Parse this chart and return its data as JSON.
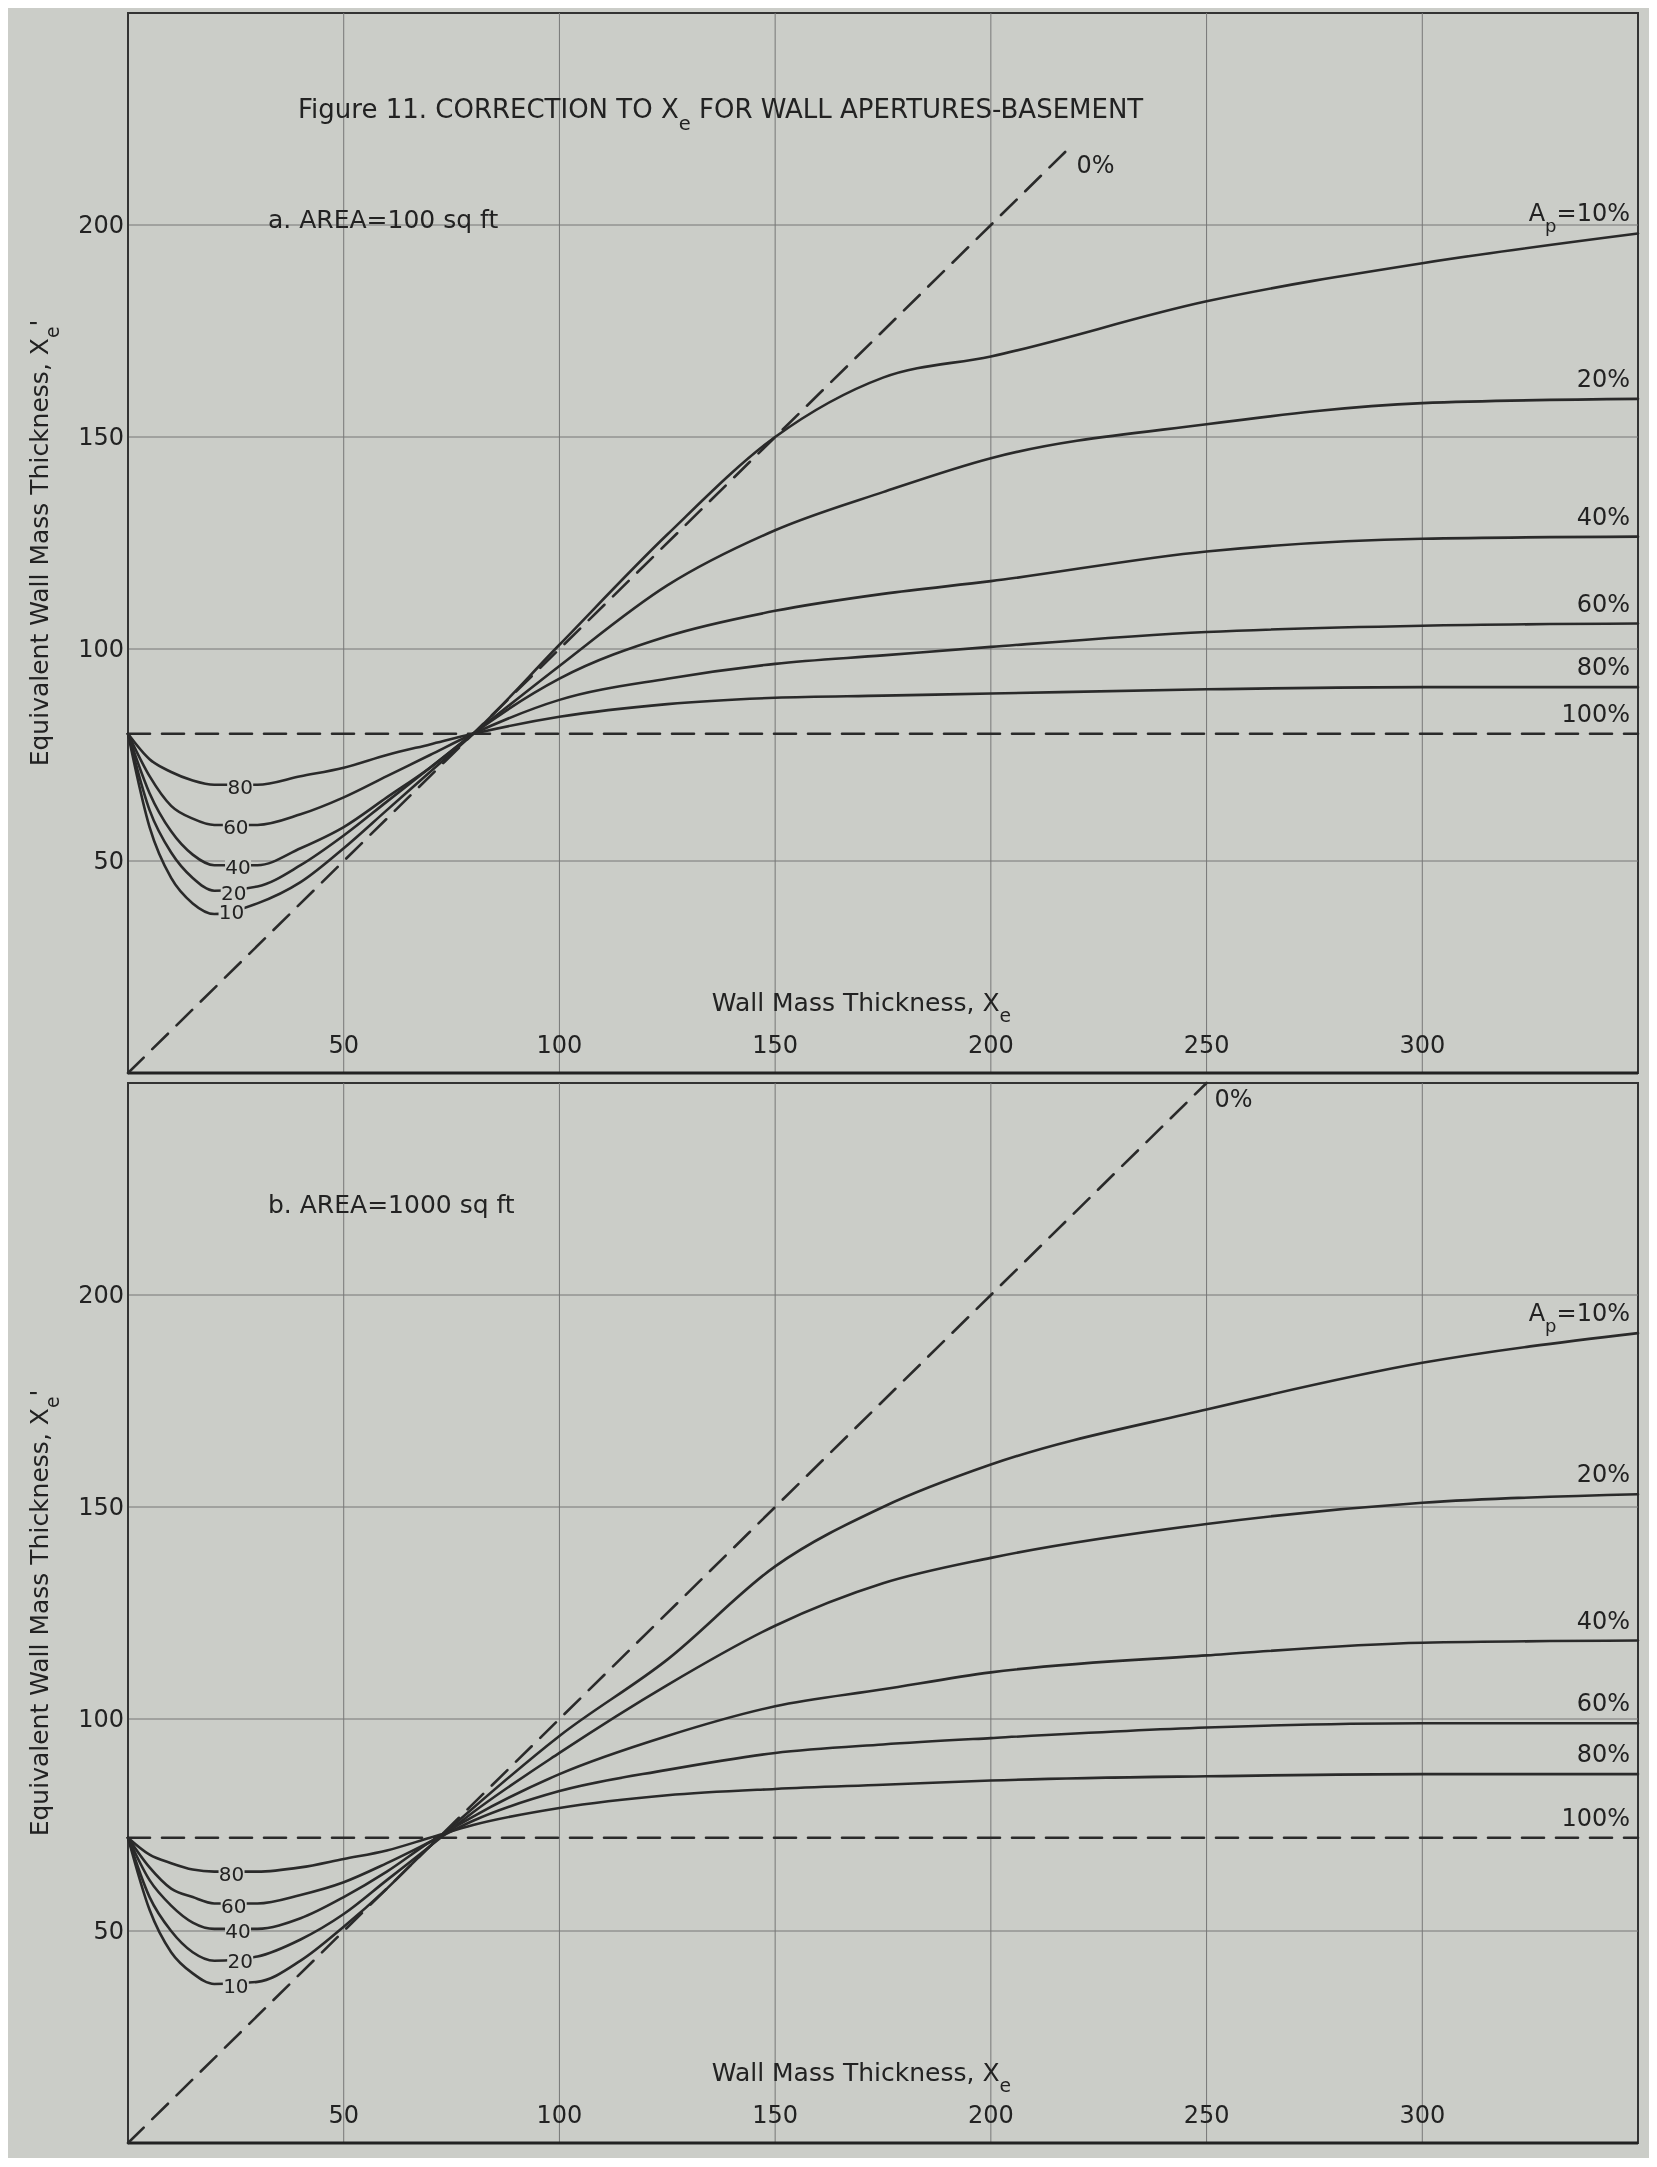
{
  "chart_data": [
    {
      "type": "line",
      "title": "Figure 11.  CORRECTION TO X$_{e}$ FOR WALL APERTURES-BASEMENT",
      "subtitle": "a. AREA=100 sq ft",
      "xlabel": "Wall Mass Thickness, X$_{e}$",
      "ylabel": "Equivalent Wall Mass Thickness, X$_{e}$'",
      "xlim": [
        0,
        350
      ],
      "ylim": [
        0,
        250
      ],
      "xticks": [
        50,
        100,
        150,
        200,
        250,
        300
      ],
      "yticks": [
        50,
        100,
        150,
        200
      ],
      "grid": true,
      "legend": false,
      "x": [
        0,
        5,
        10,
        15,
        20,
        30,
        40,
        50,
        60,
        70,
        80,
        100,
        125,
        150,
        175,
        200,
        250,
        300,
        350
      ],
      "series": [
        {
          "name": "A$_{p}$=10%",
          "color": "#2a2a2a",
          "values": [
            80,
            58,
            46,
            40,
            37.5,
            40,
            45,
            53,
            62,
            71,
            80,
            101,
            127,
            150,
            164,
            169,
            182,
            191,
            198
          ]
        },
        {
          "name": "20%",
          "color": "#2a2a2a",
          "values": [
            80,
            62,
            52,
            46,
            43,
            44,
            49,
            56,
            64,
            72,
            80,
            96,
            115,
            128,
            137,
            145,
            153,
            158,
            159
          ]
        },
        {
          "name": "40%",
          "color": "#2a2a2a",
          "values": [
            80,
            66,
            57,
            51.5,
            49,
            49,
            53,
            58,
            65,
            72,
            80,
            93,
            103,
            109,
            113,
            116,
            123,
            126,
            126.5
          ]
        },
        {
          "name": "60%",
          "color": "#2a2a2a",
          "values": [
            80,
            70,
            63,
            60,
            58.5,
            58.5,
            61,
            65,
            70,
            75,
            80,
            88,
            93,
            96.5,
            98.5,
            100.5,
            104,
            105.5,
            106
          ]
        },
        {
          "name": "80%",
          "color": "#2a2a2a",
          "values": [
            80,
            74,
            71,
            69,
            68,
            68,
            70,
            72,
            75,
            77.5,
            80,
            84,
            87,
            88.5,
            89,
            89.5,
            90.5,
            91,
            91
          ]
        },
        {
          "name": "100%",
          "color": "#2a2a2a",
          "line_style": "dashed",
          "x": [
            0,
            350
          ],
          "values": [
            80,
            80
          ]
        },
        {
          "name": "0%",
          "color": "#2a2a2a",
          "line_style": "dashed",
          "x": [
            0,
            218
          ],
          "values": [
            0,
            218
          ]
        }
      ],
      "annotations": [
        {
          "text": "80",
          "x": 26,
          "y": 67.5
        },
        {
          "text": "60",
          "x": 25,
          "y": 58
        },
        {
          "text": "40",
          "x": 25.5,
          "y": 48.5
        },
        {
          "text": "20",
          "x": 24.5,
          "y": 42.5
        },
        {
          "text": "10",
          "x": 24,
          "y": 38
        }
      ]
    },
    {
      "type": "line",
      "subtitle": "b. AREA=1000 sq ft",
      "xlabel": "Wall Mass Thickness, X$_{e}$",
      "ylabel": "Equivalent Wall Mass Thickness, X$_{e}$'",
      "xlim": [
        0,
        350
      ],
      "ylim": [
        0,
        250
      ],
      "xticks": [
        50,
        100,
        150,
        200,
        250,
        300
      ],
      "yticks": [
        50,
        100,
        150,
        200
      ],
      "grid": true,
      "legend": false,
      "x": [
        0,
        5,
        10,
        15,
        20,
        30,
        40,
        50,
        60,
        70,
        80,
        100,
        125,
        150,
        175,
        200,
        250,
        300,
        350
      ],
      "series": [
        {
          "name": "A$_{p}$=10%",
          "color": "#2a2a2a",
          "values": [
            72,
            55,
            45,
            40,
            37.5,
            38,
            43,
            51,
            60,
            70,
            79,
            96,
            114,
            136,
            150,
            160,
            173,
            184,
            191
          ]
        },
        {
          "name": "20%",
          "color": "#2a2a2a",
          "values": [
            72,
            58,
            50,
            45,
            43,
            44,
            48,
            54,
            62,
            70,
            78,
            92,
            108,
            122,
            132,
            138,
            146,
            151,
            153
          ]
        },
        {
          "name": "40%",
          "color": "#2a2a2a",
          "values": [
            72,
            62,
            56,
            52,
            50.5,
            50.5,
            53,
            58,
            64,
            71,
            77,
            87,
            96,
            103,
            107,
            111,
            115,
            118,
            118.5
          ]
        },
        {
          "name": "60%",
          "color": "#2a2a2a",
          "values": [
            72,
            65,
            60,
            58,
            56.5,
            56.5,
            58.5,
            61.5,
            66,
            71,
            76,
            83,
            88,
            92,
            94,
            95.5,
            98,
            99,
            99
          ]
        },
        {
          "name": "80%",
          "color": "#2a2a2a",
          "values": [
            72,
            68,
            66,
            64.5,
            64,
            64,
            65,
            67,
            69,
            72,
            75,
            79,
            82,
            83.5,
            84.5,
            85.5,
            86.5,
            87,
            87
          ]
        },
        {
          "name": "100%",
          "color": "#2a2a2a",
          "line_style": "dashed",
          "x": [
            0,
            350
          ],
          "values": [
            72,
            72
          ]
        },
        {
          "name": "0%",
          "color": "#2a2a2a",
          "line_style": "dashed",
          "x": [
            0,
            250
          ],
          "values": [
            0,
            250
          ]
        }
      ],
      "annotations": [
        {
          "text": "80",
          "x": 24,
          "y": 63.5
        },
        {
          "text": "60",
          "x": 24.5,
          "y": 56
        },
        {
          "text": "40",
          "x": 25.5,
          "y": 50
        },
        {
          "text": "20",
          "x": 26,
          "y": 43
        },
        {
          "text": "10",
          "x": 25,
          "y": 37
        }
      ]
    }
  ]
}
